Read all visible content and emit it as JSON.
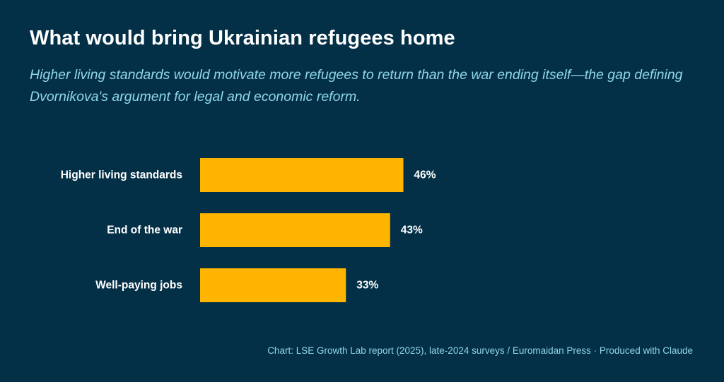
{
  "title": "What would bring Ukrainian refugees home",
  "subtitle": "Higher living standards would motivate more refugees to return than the war ending itself—the gap defining Dvornikova's argument for legal and economic reform.",
  "source": "Chart: LSE Growth Lab report (2025), late-2024 surveys / Euromaidan Press · Produced with Claude",
  "colors": {
    "background": "#043047",
    "bar": "#FFB400",
    "title": "#ffffff",
    "subtitle": "#8fd6ea"
  },
  "chart_data": {
    "type": "bar",
    "orientation": "horizontal",
    "title": "What would bring Ukrainian refugees home",
    "subtitle": "Higher living standards would motivate more refugees to return than the war ending itself—the gap defining Dvornikova's argument for legal and economic reform.",
    "categories": [
      "Higher living standards",
      "End of the war",
      "Well-paying jobs"
    ],
    "values": [
      46,
      43,
      33
    ],
    "value_labels": [
      "46%",
      "43%",
      "33%"
    ],
    "unit": "%",
    "xlim": [
      0,
      100
    ],
    "xlabel": "",
    "ylabel": "",
    "grid": false,
    "legend": "none"
  }
}
